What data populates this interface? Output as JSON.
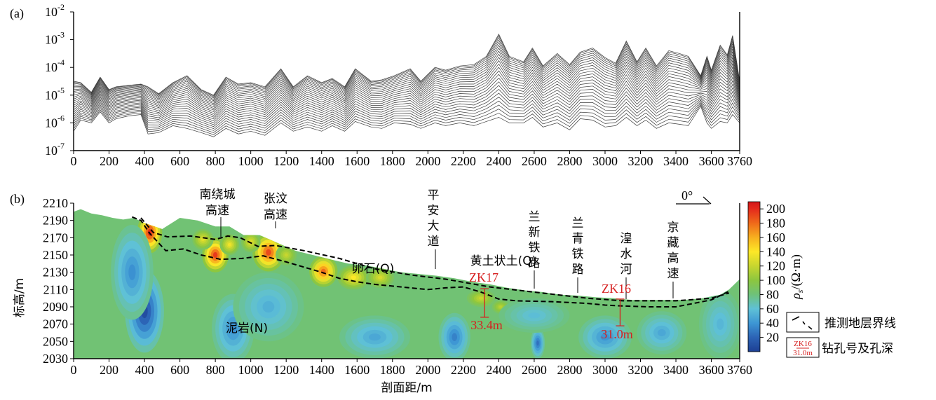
{
  "chart_data": [
    {
      "type": "line",
      "panel_label": "(a)",
      "y_scale": "log",
      "ylim": [
        1e-07,
        0.01
      ],
      "y_ticks": [
        {
          "base": "10",
          "exp": "-7"
        },
        {
          "base": "10",
          "exp": "-6"
        },
        {
          "base": "10",
          "exp": "-5"
        },
        {
          "base": "10",
          "exp": "-4"
        },
        {
          "base": "10",
          "exp": "-3"
        },
        {
          "base": "10",
          "exp": "-2"
        }
      ],
      "xlim": [
        0,
        3760
      ],
      "x_ticks": [
        "0",
        "200",
        "400",
        "600",
        "800",
        "1000",
        "1200",
        "1400",
        "1600",
        "1800",
        "2000",
        "2200",
        "2400",
        "2600",
        "2800",
        "3000",
        "3200",
        "3400",
        "3600",
        "3760"
      ],
      "line_color": "#3a3a3a",
      "n_curves": 26,
      "envelope_upper_log10": [
        [
          0,
          -4.5
        ],
        [
          40,
          -4.55
        ],
        [
          100,
          -4.9
        ],
        [
          150,
          -4.35
        ],
        [
          200,
          -4.8
        ],
        [
          240,
          -4.7
        ],
        [
          310,
          -4.65
        ],
        [
          380,
          -4.6
        ],
        [
          420,
          -4.7
        ],
        [
          480,
          -4.95
        ],
        [
          560,
          -4.55
        ],
        [
          640,
          -4.3
        ],
        [
          720,
          -4.8
        ],
        [
          790,
          -5.0
        ],
        [
          860,
          -4.35
        ],
        [
          930,
          -4.6
        ],
        [
          1000,
          -4.55
        ],
        [
          1080,
          -4.7
        ],
        [
          1170,
          -4.05
        ],
        [
          1240,
          -4.7
        ],
        [
          1320,
          -4.3
        ],
        [
          1400,
          -4.55
        ],
        [
          1460,
          -4.4
        ],
        [
          1530,
          -4.7
        ],
        [
          1590,
          -4.05
        ],
        [
          1680,
          -4.5
        ],
        [
          1740,
          -4.45
        ],
        [
          1810,
          -4.3
        ],
        [
          1900,
          -4.05
        ],
        [
          1960,
          -4.5
        ],
        [
          2040,
          -4.0
        ],
        [
          2100,
          -4.1
        ],
        [
          2180,
          -3.95
        ],
        [
          2260,
          -3.9
        ],
        [
          2330,
          -3.6
        ],
        [
          2400,
          -2.8
        ],
        [
          2460,
          -3.6
        ],
        [
          2540,
          -3.8
        ],
        [
          2590,
          -3.3
        ],
        [
          2650,
          -3.95
        ],
        [
          2730,
          -3.5
        ],
        [
          2800,
          -3.9
        ],
        [
          2860,
          -3.45
        ],
        [
          2930,
          -3.3
        ],
        [
          3000,
          -3.65
        ],
        [
          3060,
          -3.85
        ],
        [
          3120,
          -3.05
        ],
        [
          3180,
          -3.8
        ],
        [
          3230,
          -3.3
        ],
        [
          3290,
          -3.95
        ],
        [
          3360,
          -3.4
        ],
        [
          3420,
          -3.5
        ],
        [
          3470,
          -3.6
        ],
        [
          3540,
          -4.3
        ],
        [
          3575,
          -3.6
        ],
        [
          3600,
          -4.1
        ],
        [
          3650,
          -3.2
        ],
        [
          3690,
          -3.55
        ],
        [
          3720,
          -2.85
        ],
        [
          3760,
          -4.5
        ]
      ],
      "envelope_lower_log10": [
        [
          0,
          -6.3
        ],
        [
          40,
          -5.9
        ],
        [
          100,
          -6.0
        ],
        [
          150,
          -5.6
        ],
        [
          200,
          -6.0
        ],
        [
          240,
          -5.85
        ],
        [
          310,
          -5.75
        ],
        [
          380,
          -5.7
        ],
        [
          420,
          -6.4
        ],
        [
          480,
          -6.35
        ],
        [
          560,
          -6.1
        ],
        [
          640,
          -6.2
        ],
        [
          720,
          -6.35
        ],
        [
          790,
          -6.5
        ],
        [
          860,
          -6.2
        ],
        [
          930,
          -6.4
        ],
        [
          1000,
          -6.3
        ],
        [
          1080,
          -6.45
        ],
        [
          1170,
          -6.0
        ],
        [
          1240,
          -6.3
        ],
        [
          1320,
          -6.15
        ],
        [
          1400,
          -6.3
        ],
        [
          1460,
          -6.1
        ],
        [
          1530,
          -6.3
        ],
        [
          1590,
          -5.95
        ],
        [
          1680,
          -6.15
        ],
        [
          1740,
          -6.2
        ],
        [
          1810,
          -6.0
        ],
        [
          1900,
          -6.05
        ],
        [
          1960,
          -6.2
        ],
        [
          2040,
          -6.0
        ],
        [
          2100,
          -6.1
        ],
        [
          2180,
          -6.0
        ],
        [
          2260,
          -6.1
        ],
        [
          2330,
          -5.95
        ],
        [
          2400,
          -5.8
        ],
        [
          2460,
          -6.0
        ],
        [
          2540,
          -6.0
        ],
        [
          2590,
          -5.8
        ],
        [
          2650,
          -6.15
        ],
        [
          2730,
          -6.0
        ],
        [
          2800,
          -6.25
        ],
        [
          2860,
          -5.85
        ],
        [
          2930,
          -5.9
        ],
        [
          3000,
          -6.15
        ],
        [
          3060,
          -6.1
        ],
        [
          3120,
          -5.8
        ],
        [
          3180,
          -6.1
        ],
        [
          3230,
          -5.9
        ],
        [
          3290,
          -6.2
        ],
        [
          3360,
          -6.0
        ],
        [
          3420,
          -6.05
        ],
        [
          3470,
          -6.1
        ],
        [
          3540,
          -5.4
        ],
        [
          3575,
          -6.0
        ],
        [
          3600,
          -6.2
        ],
        [
          3650,
          -5.95
        ],
        [
          3690,
          -6.0
        ],
        [
          3720,
          -5.7
        ],
        [
          3760,
          -6.0
        ]
      ]
    },
    {
      "type": "heatmap",
      "panel_label": "(b)",
      "xlabel": "剖面距/m",
      "ylabel": "标高/m",
      "xlim": [
        0,
        3760
      ],
      "ylim": [
        2030,
        2210
      ],
      "x_ticks": [
        "0",
        "200",
        "400",
        "600",
        "800",
        "1000",
        "1200",
        "1400",
        "1600",
        "1800",
        "2000",
        "2200",
        "2400",
        "2600",
        "2800",
        "3000",
        "3200",
        "3400",
        "3600",
        "3760"
      ],
      "y_ticks": [
        "2030",
        "2050",
        "2070",
        "2090",
        "2110",
        "2130",
        "2150",
        "2170",
        "2190",
        "2210"
      ],
      "colorbar": {
        "label_rho": "ρ",
        "label_sub": "s",
        "label_unit": "/(Ω·m)",
        "ticks": [
          "20",
          "40",
          "60",
          "80",
          "100",
          "120",
          "140",
          "160",
          "180",
          "200"
        ],
        "range": [
          0,
          210
        ],
        "stops": [
          [
            0,
            "#1d3f94"
          ],
          [
            20,
            "#2c63b5"
          ],
          [
            40,
            "#3d96d4"
          ],
          [
            60,
            "#5fc1d6"
          ],
          [
            80,
            "#6ec27a"
          ],
          [
            100,
            "#8cc63f"
          ],
          [
            120,
            "#c7d62f"
          ],
          [
            140,
            "#fde827"
          ],
          [
            160,
            "#f7b01f"
          ],
          [
            180,
            "#ef6a1a"
          ],
          [
            200,
            "#e42a1c"
          ],
          [
            210,
            "#d3161a"
          ]
        ]
      },
      "topography": [
        [
          0,
          2200
        ],
        [
          40,
          2203
        ],
        [
          100,
          2198
        ],
        [
          160,
          2196
        ],
        [
          220,
          2193
        ],
        [
          280,
          2191
        ],
        [
          340,
          2193
        ],
        [
          400,
          2187
        ],
        [
          500,
          2180
        ],
        [
          600,
          2193
        ],
        [
          700,
          2190
        ],
        [
          800,
          2183
        ],
        [
          880,
          2183
        ],
        [
          960,
          2173
        ],
        [
          1050,
          2173
        ],
        [
          1150,
          2164
        ],
        [
          1250,
          2155
        ],
        [
          1350,
          2150
        ],
        [
          1450,
          2145
        ],
        [
          1550,
          2140
        ],
        [
          1650,
          2138
        ],
        [
          1750,
          2134
        ],
        [
          1850,
          2130
        ],
        [
          1950,
          2128
        ],
        [
          2050,
          2126
        ],
        [
          2150,
          2123
        ],
        [
          2250,
          2119
        ],
        [
          2350,
          2116
        ],
        [
          2450,
          2112
        ],
        [
          2550,
          2109
        ],
        [
          2650,
          2107
        ],
        [
          2750,
          2104
        ],
        [
          2850,
          2103
        ],
        [
          2950,
          2101
        ],
        [
          3050,
          2100
        ],
        [
          3150,
          2098
        ],
        [
          3250,
          2098
        ],
        [
          3350,
          2098
        ],
        [
          3450,
          2098
        ],
        [
          3550,
          2100
        ],
        [
          3650,
          2104
        ],
        [
          3700,
          2110
        ],
        [
          3760,
          2122
        ]
      ],
      "boundary_loess": [
        [
          380,
          2193
        ],
        [
          450,
          2176
        ],
        [
          530,
          2171
        ],
        [
          660,
          2172
        ],
        [
          800,
          2168
        ],
        [
          870,
          2172
        ],
        [
          940,
          2170
        ],
        [
          1040,
          2160
        ],
        [
          1140,
          2161
        ],
        [
          1300,
          2155
        ],
        [
          1500,
          2146
        ],
        [
          1700,
          2134
        ],
        [
          1900,
          2127
        ],
        [
          2100,
          2122
        ],
        [
          2350,
          2113
        ],
        [
          2600,
          2107
        ],
        [
          2900,
          2100
        ],
        [
          3100,
          2097
        ],
        [
          3400,
          2097
        ],
        [
          3600,
          2100
        ],
        [
          3700,
          2106
        ]
      ],
      "boundary_gravel": [
        [
          330,
          2194
        ],
        [
          380,
          2190
        ],
        [
          430,
          2175
        ],
        [
          520,
          2155
        ],
        [
          620,
          2157
        ],
        [
          720,
          2150
        ],
        [
          830,
          2145
        ],
        [
          950,
          2146
        ],
        [
          1070,
          2149
        ],
        [
          1200,
          2142
        ],
        [
          1300,
          2136
        ],
        [
          1400,
          2130
        ],
        [
          1500,
          2123
        ],
        [
          1600,
          2119
        ],
        [
          1700,
          2116
        ],
        [
          1800,
          2114
        ],
        [
          1900,
          2112
        ],
        [
          2000,
          2110
        ],
        [
          2100,
          2112
        ],
        [
          2200,
          2113
        ],
        [
          2300,
          2107
        ],
        [
          2400,
          2099
        ],
        [
          2500,
          2097
        ],
        [
          2700,
          2096
        ],
        [
          2900,
          2094
        ],
        [
          3000,
          2092
        ],
        [
          3100,
          2091
        ],
        [
          3250,
          2090
        ],
        [
          3400,
          2090
        ],
        [
          3500,
          2094
        ],
        [
          3600,
          2098
        ],
        [
          3700,
          2108
        ]
      ],
      "anomalies": [
        {
          "x": 430,
          "y": 2176,
          "v": 200,
          "rx": 70,
          "ry": 24
        },
        {
          "x": 800,
          "y": 2150,
          "v": 195,
          "rx": 75,
          "ry": 20
        },
        {
          "x": 1100,
          "y": 2153,
          "v": 190,
          "rx": 90,
          "ry": 22
        },
        {
          "x": 730,
          "y": 2168,
          "v": 130,
          "rx": 60,
          "ry": 12
        },
        {
          "x": 880,
          "y": 2162,
          "v": 135,
          "rx": 55,
          "ry": 12
        },
        {
          "x": 1000,
          "y": 2165,
          "v": 130,
          "rx": 55,
          "ry": 12
        },
        {
          "x": 1200,
          "y": 2150,
          "v": 120,
          "rx": 60,
          "ry": 12
        },
        {
          "x": 1410,
          "y": 2131,
          "v": 180,
          "rx": 80,
          "ry": 18
        },
        {
          "x": 1580,
          "y": 2124,
          "v": 140,
          "rx": 90,
          "ry": 14
        },
        {
          "x": 1730,
          "y": 2124,
          "v": 125,
          "rx": 80,
          "ry": 12
        },
        {
          "x": 2300,
          "y": 2100,
          "v": 120,
          "rx": 80,
          "ry": 10
        },
        {
          "x": 2410,
          "y": 2090,
          "v": 115,
          "rx": 50,
          "ry": 8
        },
        {
          "x": 400,
          "y": 2085,
          "v": 8,
          "rx": 110,
          "ry": 48
        },
        {
          "x": 330,
          "y": 2130,
          "v": 38,
          "rx": 120,
          "ry": 55
        },
        {
          "x": 900,
          "y": 2065,
          "v": 38,
          "rx": 120,
          "ry": 40
        },
        {
          "x": 1100,
          "y": 2090,
          "v": 52,
          "rx": 200,
          "ry": 40
        },
        {
          "x": 2150,
          "y": 2055,
          "v": 32,
          "rx": 90,
          "ry": 28
        },
        {
          "x": 2620,
          "y": 2048,
          "v": 25,
          "rx": 40,
          "ry": 18
        },
        {
          "x": 3000,
          "y": 2055,
          "v": 40,
          "rx": 150,
          "ry": 25
        },
        {
          "x": 3320,
          "y": 2060,
          "v": 48,
          "rx": 140,
          "ry": 25
        },
        {
          "x": 1700,
          "y": 2055,
          "v": 48,
          "rx": 200,
          "ry": 25
        },
        {
          "x": 2600,
          "y": 2080,
          "v": 58,
          "rx": 200,
          "ry": 20
        },
        {
          "x": 3650,
          "y": 2070,
          "v": 55,
          "rx": 120,
          "ry": 40
        }
      ],
      "annotations": {
        "road1_a": "南绕城",
        "road1_b": "高速",
        "road2_a": "张汶",
        "road2_b": "高速",
        "road3": [
          "平",
          "安",
          "大",
          "道"
        ],
        "rail1": [
          "兰",
          "新",
          "铁",
          "路"
        ],
        "rail2": [
          "兰",
          "青",
          "铁",
          "路"
        ],
        "river": [
          "湟",
          "水",
          "河"
        ],
        "road4": [
          "京",
          "藏",
          "高",
          "速"
        ],
        "loess": "黄土状土(Q)",
        "gravel": "卵石(Q)",
        "mudstone": "泥岩(N)",
        "azimuth": "0°"
      },
      "boreholes": [
        {
          "id": "ZK17",
          "x": 2320,
          "depth": "33.4m",
          "top": 2111,
          "bottom": 2078
        },
        {
          "id": "ZK16",
          "x": 3085,
          "depth": "31.0m",
          "top": 2099,
          "bottom": 2068
        }
      ],
      "legend": {
        "boundary_label": "推测地层界线",
        "borehole_sample_id": "ZK16",
        "borehole_sample_depth": "31.0m",
        "borehole_label": "钻孔号及孔深"
      }
    }
  ]
}
